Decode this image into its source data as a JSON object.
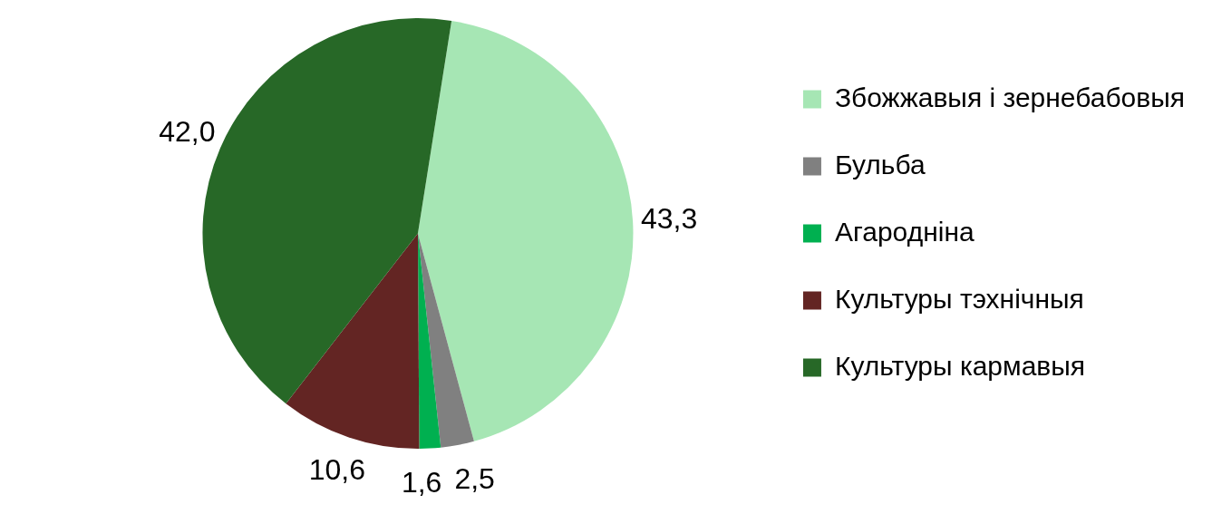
{
  "chart_data": {
    "type": "pie",
    "categories": [
      "Збожжавыя і зернебабовыя",
      "Бульба",
      "Агароднiна",
      "Культуры тэхнічныя",
      "Культуры кармавыя"
    ],
    "values": [
      43.3,
      2.5,
      1.6,
      10.6,
      42.0
    ],
    "value_labels": [
      "43,3",
      "2,5",
      "1,6",
      "10,6",
      "42,0"
    ],
    "colors": [
      "#a6e6b4",
      "#808080",
      "#00b050",
      "#632523",
      "#276827"
    ],
    "legend": "right"
  }
}
